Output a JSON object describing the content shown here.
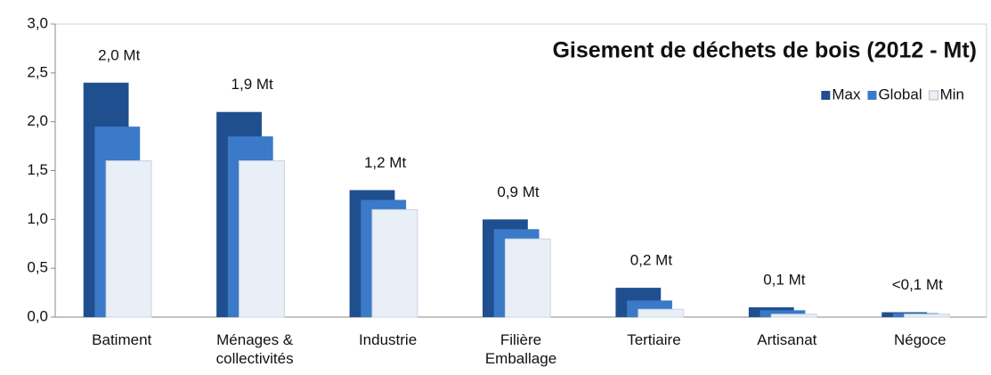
{
  "chart_data": {
    "type": "bar",
    "title": "Gisement de déchets de bois (2012 - Mt)",
    "categories": [
      "Batiment",
      "Ménages & collectivités",
      "Industrie",
      "Filière Emballage",
      "Tertiaire",
      "Artisanat",
      "Négoce"
    ],
    "series": [
      {
        "name": "Max",
        "color": "#1f4f8f",
        "values": [
          2.4,
          2.1,
          1.3,
          1.0,
          0.3,
          0.1,
          0.05
        ]
      },
      {
        "name": "Global",
        "color": "#3b79c9",
        "values": [
          1.95,
          1.85,
          1.2,
          0.9,
          0.17,
          0.07,
          0.04
        ],
        "value_labels": [
          "2,0 Mt",
          "1,9 Mt",
          "1,2 Mt",
          "0,9 Mt",
          "0,2 Mt",
          "0,1 Mt",
          "<0,1 Mt"
        ]
      },
      {
        "name": "Min",
        "color": "#e9eff7",
        "values": [
          1.6,
          1.6,
          1.1,
          0.8,
          0.08,
          0.03,
          0.03
        ]
      }
    ],
    "ylim": [
      0,
      3.0
    ],
    "yticks": [
      {
        "value": 0,
        "label": "0,0"
      },
      {
        "value": 0.5,
        "label": "0,5"
      },
      {
        "value": 1.0,
        "label": "1,0"
      },
      {
        "value": 1.5,
        "label": "1,5"
      },
      {
        "value": 2.0,
        "label": "2,0"
      },
      {
        "value": 2.5,
        "label": "2,5"
      },
      {
        "value": 3.0,
        "label": "3,0"
      }
    ],
    "legend": "upper right",
    "grid": false
  }
}
